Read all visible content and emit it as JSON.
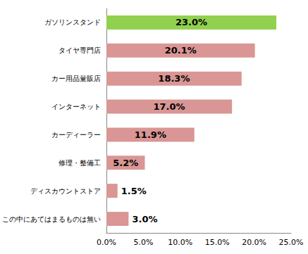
{
  "chart_data": {
    "type": "bar",
    "orientation": "horizontal",
    "categories": [
      "ガソリンスタンド",
      "タイヤ専門店",
      "カー用品量販店",
      "インターネット",
      "カーディーラー",
      "修理・整備工",
      "ディスカウントストア",
      "この中にあてはまるものは無い"
    ],
    "values": [
      23.0,
      20.1,
      18.3,
      17.0,
      11.9,
      5.2,
      1.5,
      3.0
    ],
    "value_labels": [
      "23.0%",
      "20.1%",
      "18.3%",
      "17.0%",
      "11.9%",
      "5.2%",
      "1.5%",
      "3.0%"
    ],
    "colors": [
      "#92d050",
      "#d99694",
      "#d99694",
      "#d99694",
      "#d99694",
      "#d99694",
      "#d99694",
      "#d99694"
    ],
    "xlim": [
      0,
      25
    ],
    "xticks": [
      {
        "value": 0,
        "label": "0.0%"
      },
      {
        "value": 5,
        "label": "5.0%"
      },
      {
        "value": 10,
        "label": "10.0%"
      },
      {
        "value": 15,
        "label": "15.0%"
      },
      {
        "value": 20,
        "label": "20.0%"
      },
      {
        "value": 25,
        "label": "25.0%"
      }
    ],
    "data_labels": true,
    "grid": false
  }
}
